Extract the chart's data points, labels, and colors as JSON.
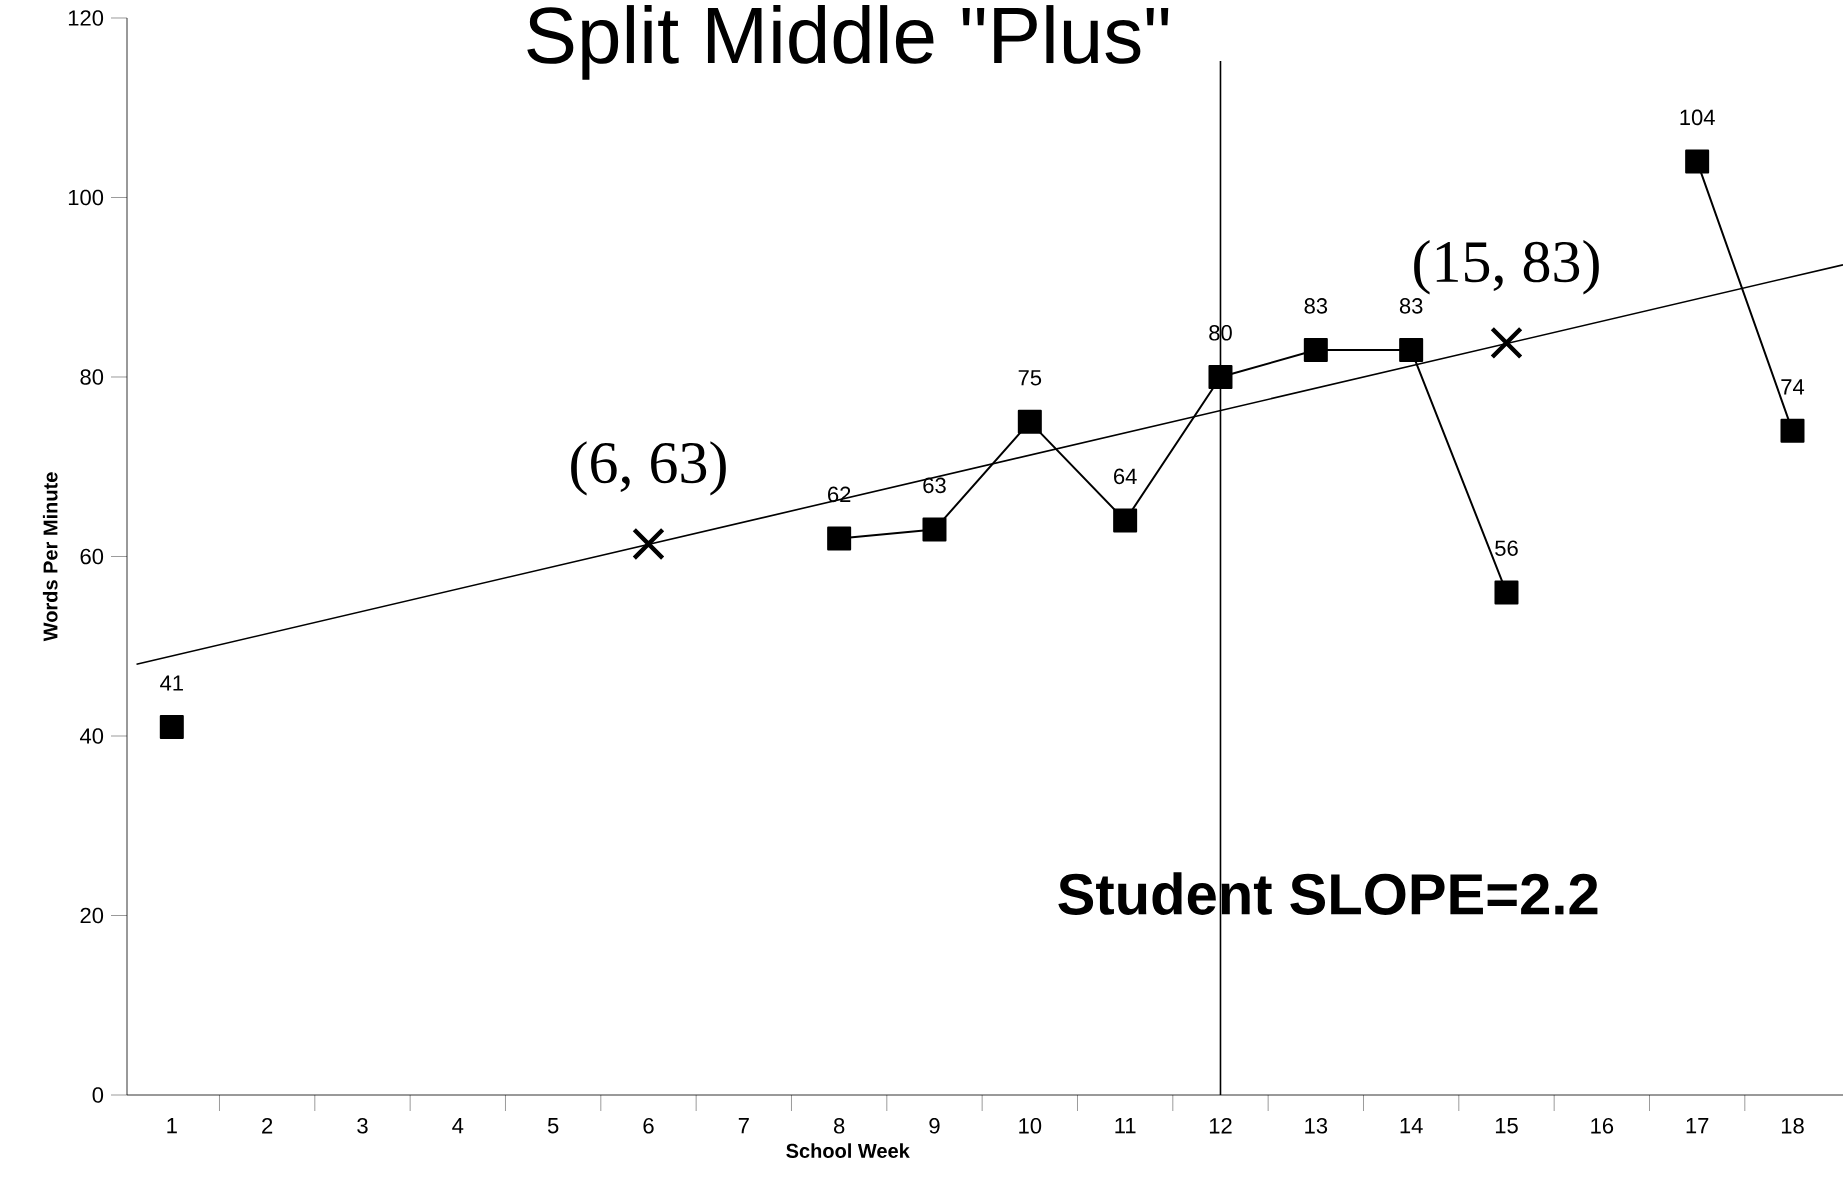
{
  "chart_data": {
    "type": "line",
    "title": "Split Middle \"Plus\"",
    "xlabel": "School Week",
    "ylabel": "Words Per Minute",
    "x": [
      1,
      2,
      3,
      4,
      5,
      6,
      7,
      8,
      9,
      10,
      11,
      12,
      13,
      14,
      15,
      16,
      17,
      18
    ],
    "xlim": [
      0.53,
      18.53
    ],
    "xticks": [
      1,
      2,
      3,
      4,
      5,
      6,
      7,
      8,
      9,
      10,
      11,
      12,
      13,
      14,
      15,
      16,
      17,
      18
    ],
    "ylim": [
      0,
      120
    ],
    "yticks": [
      0,
      20,
      40,
      60,
      80,
      100,
      120
    ],
    "series": [
      {
        "color": "#000000",
        "marker": "square",
        "values": [
          41,
          null,
          null,
          null,
          null,
          null,
          null,
          62,
          63,
          75,
          64,
          80,
          83,
          83,
          56,
          null,
          104,
          74
        ],
        "value_labels": [
          "41",
          null,
          null,
          null,
          null,
          null,
          null,
          "62",
          "63",
          "75",
          "64",
          "80",
          "83",
          "83",
          "56",
          null,
          "104",
          "74"
        ]
      },
      {
        "type": "line",
        "color": "#000000",
        "marker": "none",
        "x": [
          0.63,
          18.53
        ],
        "values": [
          48,
          92.5
        ]
      },
      {
        "type": "scatter",
        "color": "#000000",
        "marker": "cross",
        "x": [
          6,
          15
        ],
        "values": [
          61.4,
          83.8
        ]
      }
    ],
    "ref_lines": [
      {
        "axis": "x",
        "value": 12,
        "color": "#000000"
      }
    ],
    "annotations": [
      {
        "text": "(6, 63)",
        "x": 6,
        "y": 61.4
      },
      {
        "text": "(15, 83)",
        "x": 15,
        "y": 83.8
      },
      "Student SLOPE=2.2"
    ]
  }
}
